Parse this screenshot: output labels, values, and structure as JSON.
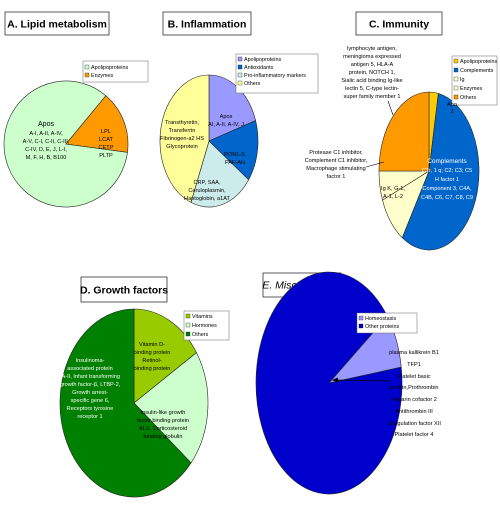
{
  "chart_data": [
    {
      "type": "pie",
      "title": "A. Lipid metabolism",
      "legend": "top-right",
      "series": [
        {
          "values": [
            84,
            16
          ]
        }
      ],
      "categories": [
        "Apolipoproteins",
        "Enzymes"
      ],
      "colors": [
        "#ccffcc",
        "#ff9900"
      ],
      "slice_labels": [
        {
          "title": "Apos",
          "lines": [
            "A-I, A-II, A-IV,",
            "A-V, C-I, C-II, C-III,",
            "C-IV, D, E, J, L-I,",
            "M, F, H, B, B100"
          ]
        },
        {
          "lines": [
            "LPL",
            "LCAT",
            "CETP",
            "PLTP"
          ]
        }
      ]
    },
    {
      "type": "pie",
      "title": "B. Inflammation",
      "legend": "top-right",
      "series": [
        {
          "values": [
            20,
            15,
            21,
            44
          ]
        }
      ],
      "categories": [
        "Apolipoproteins",
        "Antioxidants",
        "Pro-inflammatory markers",
        "Others"
      ],
      "colors": [
        "#9999ff",
        "#0066cc",
        "#ccecec",
        "#ffff99"
      ],
      "slice_labels": [
        {
          "title": "Apos",
          "lines": [
            "AI, A-II, A-IV, J"
          ]
        },
        {
          "lines": [
            "PON1-3,",
            "PAF-AH"
          ]
        },
        {
          "lines": [
            "CRP, SAA,",
            "Ceruloplasmin,",
            "Haptoglobin, a1AT"
          ]
        },
        {
          "lines": [
            "Transthyretin,",
            "Transferrin",
            "Fibrinogen-a2 HS",
            "Glycoprotein"
          ]
        }
      ]
    },
    {
      "type": "pie",
      "title": "C. Immunity",
      "legend": "top-right",
      "series": [
        {
          "values": [
            3,
            56,
            10,
            6,
            25
          ]
        }
      ],
      "categories": [
        "Apolipoproteins",
        "Complements",
        "Ig",
        "Enzymes",
        "Others"
      ],
      "colors": [
        "#ffcc00",
        "#0066cc",
        "#ffffcc",
        "#ffffcc",
        "#ff9900"
      ],
      "slice_labels": [
        {
          "lines": [
            "Apo",
            "J"
          ]
        },
        {
          "lines": [
            "Complements",
            "C1r, 1 q; C2; C3; C5",
            "H factor 1",
            "Component 3, C4A,",
            "C4B, C6, C7, C8, C9"
          ]
        },
        {
          "lines": [
            "Ig K, G-1,",
            "A-1, L-2"
          ]
        },
        {
          "lines": []
        },
        {
          "lines": []
        }
      ],
      "annotations": [
        [
          "lymphocyte antigen,",
          "meningioma expressed",
          "antigen 5, HLA-A",
          "protein, NOTCH 1,",
          "Sialic acid binding Ig-like",
          "lectin 5, C-type lectin-",
          "super family member 1"
        ],
        [
          "Protease C1 inhibitor,",
          "Complement C1 inhibitor,",
          "Macrophage stimulating",
          "factor 1"
        ]
      ]
    },
    {
      "type": "pie",
      "title": "D. Growth factors",
      "legend": "top-right",
      "series": [
        {
          "values": [
            16,
            20,
            64
          ]
        }
      ],
      "categories": [
        "Vitamins",
        "Hormones",
        "Others"
      ],
      "colors": [
        "#99cc00",
        "#ccffcc",
        "#008000"
      ],
      "slice_labels": [
        {
          "lines": [
            "Vitamin D-",
            "binding protein",
            "Retinol-",
            "binding protein"
          ]
        },
        {
          "lines": [
            "Insulin-like growth",
            "factor binding protein",
            "ALS, Corticosteroid",
            "binding globulin"
          ]
        },
        {
          "lines": [
            "Insulinoma-",
            "associated protein",
            "IA-II, Infant transforming",
            "growth factor-β, LTBP-2,",
            "Growth arrest-",
            "specific gene 6,",
            "Receptors tyrosine",
            "receptor 1"
          ]
        }
      ]
    },
    {
      "type": "pie",
      "title": "E. Miscellaneous",
      "legend": "top-right",
      "series": [
        {
          "values": [
            8,
            92
          ]
        }
      ],
      "categories": [
        "Homeostasis",
        "Other proteins"
      ],
      "colors": [
        "#9999ff",
        "#0000cc"
      ],
      "annotations": [
        [
          "plasma kallikrein B1",
          "TFP1",
          "Platelet basic",
          "protein,Prothrombin",
          "Heparin cofactor 2",
          "Antithrombin III",
          "Coagulation factor XII",
          "Platelet factor 4"
        ]
      ]
    }
  ]
}
